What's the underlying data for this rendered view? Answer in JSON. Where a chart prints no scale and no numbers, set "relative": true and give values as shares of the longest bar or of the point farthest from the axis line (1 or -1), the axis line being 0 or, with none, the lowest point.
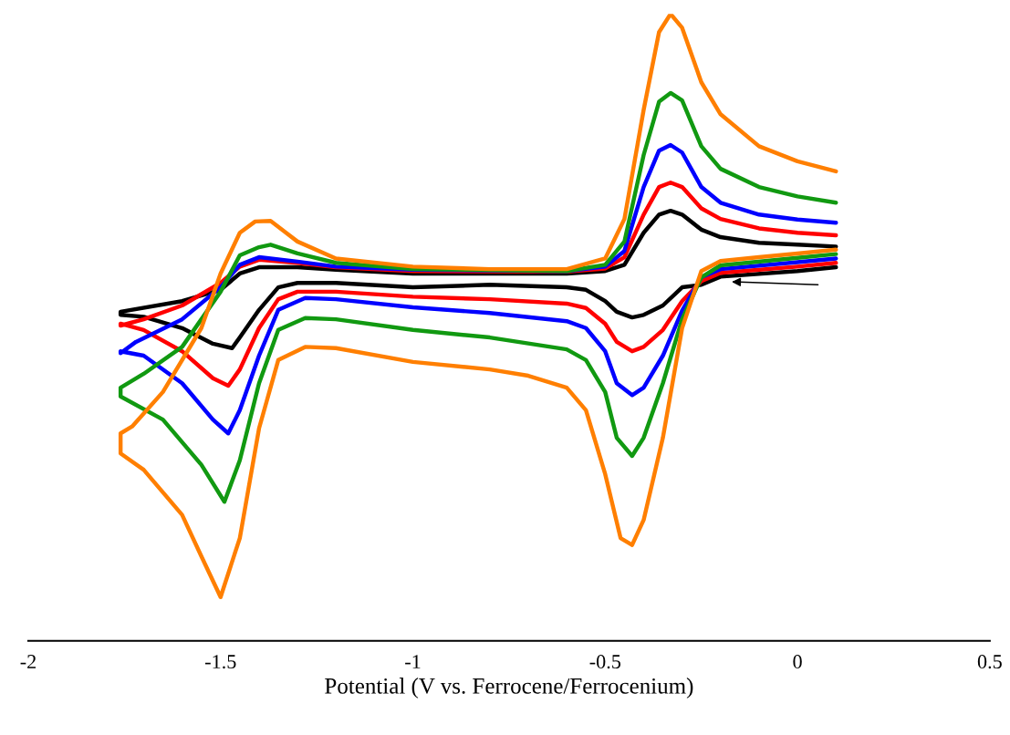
{
  "chart_data": {
    "type": "line",
    "xlabel": "Potential (V vs. Ferrocene/Ferrocenium)",
    "relative": true,
    "xlim": [
      -2,
      0.5
    ],
    "xticks": [
      -2,
      -1.5,
      -1,
      -0.5,
      0,
      0.5
    ],
    "grid": false,
    "legend": false,
    "marker": "none",
    "line_style": "solid",
    "tick_labels": "x",
    "series": [
      {
        "color": "#ff7f00",
        "x": [
          0.1,
          0.0,
          -0.1,
          -0.2,
          -0.25,
          -0.3,
          -0.35,
          -0.4,
          -0.43,
          -0.46,
          -0.5,
          -0.55,
          -0.6,
          -0.7,
          -0.8,
          -1.0,
          -1.2,
          -1.28,
          -1.35,
          -1.4,
          -1.45,
          -1.5,
          -1.55,
          -1.6,
          -1.7,
          -1.76,
          -1.76,
          -1.73,
          -1.65,
          -1.55,
          -1.5,
          -1.45,
          -1.41,
          -1.37,
          -1.3,
          -1.2,
          -1.0,
          -0.8,
          -0.6,
          -0.5,
          -0.45,
          -0.4,
          -0.36,
          -0.33,
          -0.3,
          -0.25,
          -0.2,
          -0.1,
          0.0,
          0.1
        ],
        "values": [
          0.624,
          0.618,
          0.612,
          0.606,
          0.59,
          0.499,
          0.324,
          0.193,
          0.153,
          0.164,
          0.266,
          0.368,
          0.404,
          0.423,
          0.433,
          0.445,
          0.467,
          0.469,
          0.448,
          0.339,
          0.164,
          0.07,
          0.135,
          0.201,
          0.273,
          0.299,
          0.331,
          0.342,
          0.397,
          0.499,
          0.586,
          0.651,
          0.669,
          0.67,
          0.637,
          0.61,
          0.597,
          0.593,
          0.593,
          0.61,
          0.673,
          0.847,
          0.971,
          1.0,
          0.978,
          0.891,
          0.84,
          0.789,
          0.765,
          0.749
        ]
      },
      {
        "color": "#119911",
        "x": [
          0.1,
          0.0,
          -0.2,
          -0.25,
          -0.3,
          -0.35,
          -0.4,
          -0.43,
          -0.47,
          -0.5,
          -0.55,
          -0.6,
          -0.8,
          -1.0,
          -1.2,
          -1.28,
          -1.35,
          -1.4,
          -1.45,
          -1.49,
          -1.55,
          -1.65,
          -1.76,
          -1.76,
          -1.7,
          -1.6,
          -1.5,
          -1.45,
          -1.4,
          -1.37,
          -1.3,
          -1.2,
          -1.0,
          -0.6,
          -0.5,
          -0.45,
          -0.4,
          -0.36,
          -0.33,
          -0.3,
          -0.25,
          -0.2,
          -0.1,
          0.0,
          0.1
        ],
        "values": [
          0.617,
          0.611,
          0.599,
          0.58,
          0.513,
          0.411,
          0.324,
          0.295,
          0.324,
          0.397,
          0.448,
          0.465,
          0.484,
          0.496,
          0.513,
          0.515,
          0.496,
          0.411,
          0.288,
          0.222,
          0.281,
          0.353,
          0.39,
          0.404,
          0.426,
          0.469,
          0.557,
          0.615,
          0.628,
          0.632,
          0.618,
          0.603,
          0.593,
          0.59,
          0.6,
          0.637,
          0.775,
          0.86,
          0.874,
          0.862,
          0.789,
          0.753,
          0.724,
          0.709,
          0.699
        ]
      },
      {
        "color": "#0000ff",
        "x": [
          0.1,
          0.0,
          -0.2,
          -0.25,
          -0.3,
          -0.35,
          -0.4,
          -0.43,
          -0.47,
          -0.5,
          -0.55,
          -0.6,
          -0.8,
          -1.0,
          -1.2,
          -1.28,
          -1.35,
          -1.4,
          -1.45,
          -1.48,
          -1.52,
          -1.6,
          -1.7,
          -1.76,
          -1.76,
          -1.72,
          -1.6,
          -1.5,
          -1.45,
          -1.4,
          -1.3,
          -1.2,
          -1.0,
          -0.6,
          -0.5,
          -0.45,
          -0.4,
          -0.36,
          -0.33,
          -0.3,
          -0.25,
          -0.2,
          -0.1,
          0.0,
          0.1
        ],
        "values": [
          0.61,
          0.604,
          0.593,
          0.58,
          0.527,
          0.455,
          0.404,
          0.392,
          0.411,
          0.462,
          0.499,
          0.51,
          0.523,
          0.532,
          0.545,
          0.547,
          0.528,
          0.455,
          0.368,
          0.331,
          0.353,
          0.411,
          0.455,
          0.462,
          0.459,
          0.477,
          0.513,
          0.564,
          0.6,
          0.612,
          0.605,
          0.597,
          0.592,
          0.59,
          0.597,
          0.622,
          0.724,
          0.782,
          0.791,
          0.779,
          0.724,
          0.699,
          0.68,
          0.672,
          0.667
        ]
      },
      {
        "color": "#ff0000",
        "x": [
          0.1,
          0.0,
          -0.2,
          -0.25,
          -0.3,
          -0.35,
          -0.4,
          -0.43,
          -0.47,
          -0.5,
          -0.55,
          -0.6,
          -0.8,
          -1.0,
          -1.2,
          -1.3,
          -1.35,
          -1.4,
          -1.45,
          -1.48,
          -1.52,
          -1.6,
          -1.7,
          -1.76,
          -1.76,
          -1.7,
          -1.6,
          -1.5,
          -1.45,
          -1.4,
          -1.3,
          -1.2,
          -1.0,
          -0.6,
          -0.5,
          -0.45,
          -0.4,
          -0.36,
          -0.33,
          -0.3,
          -0.25,
          -0.2,
          -0.1,
          0.0,
          0.1
        ],
        "values": [
          0.603,
          0.597,
          0.587,
          0.574,
          0.542,
          0.496,
          0.469,
          0.462,
          0.477,
          0.506,
          0.531,
          0.538,
          0.545,
          0.549,
          0.557,
          0.557,
          0.545,
          0.499,
          0.433,
          0.407,
          0.419,
          0.462,
          0.496,
          0.506,
          0.503,
          0.513,
          0.535,
          0.571,
          0.597,
          0.608,
          0.603,
          0.596,
          0.59,
          0.589,
          0.594,
          0.612,
          0.68,
          0.724,
          0.731,
          0.724,
          0.69,
          0.673,
          0.658,
          0.651,
          0.647
        ]
      },
      {
        "color": "#000000",
        "x": [
          0.1,
          0.0,
          -0.2,
          -0.25,
          -0.3,
          -0.35,
          -0.4,
          -0.43,
          -0.47,
          -0.5,
          -0.55,
          -0.6,
          -0.8,
          -1.0,
          -1.2,
          -1.3,
          -1.35,
          -1.4,
          -1.45,
          -1.47,
          -1.52,
          -1.6,
          -1.7,
          -1.76,
          -1.76,
          -1.6,
          -1.5,
          -1.45,
          -1.4,
          -1.3,
          -1.2,
          -1.0,
          -0.6,
          -0.5,
          -0.45,
          -0.4,
          -0.36,
          -0.33,
          -0.3,
          -0.25,
          -0.2,
          -0.1,
          0.0,
          0.1
        ],
        "values": [
          0.596,
          0.59,
          0.581,
          0.568,
          0.564,
          0.535,
          0.52,
          0.516,
          0.525,
          0.542,
          0.56,
          0.564,
          0.568,
          0.564,
          0.571,
          0.571,
          0.564,
          0.528,
          0.484,
          0.467,
          0.474,
          0.499,
          0.517,
          0.52,
          0.525,
          0.542,
          0.56,
          0.586,
          0.596,
          0.596,
          0.592,
          0.586,
          0.586,
          0.59,
          0.6,
          0.651,
          0.68,
          0.686,
          0.68,
          0.656,
          0.644,
          0.635,
          0.632,
          0.629
        ]
      }
    ]
  }
}
